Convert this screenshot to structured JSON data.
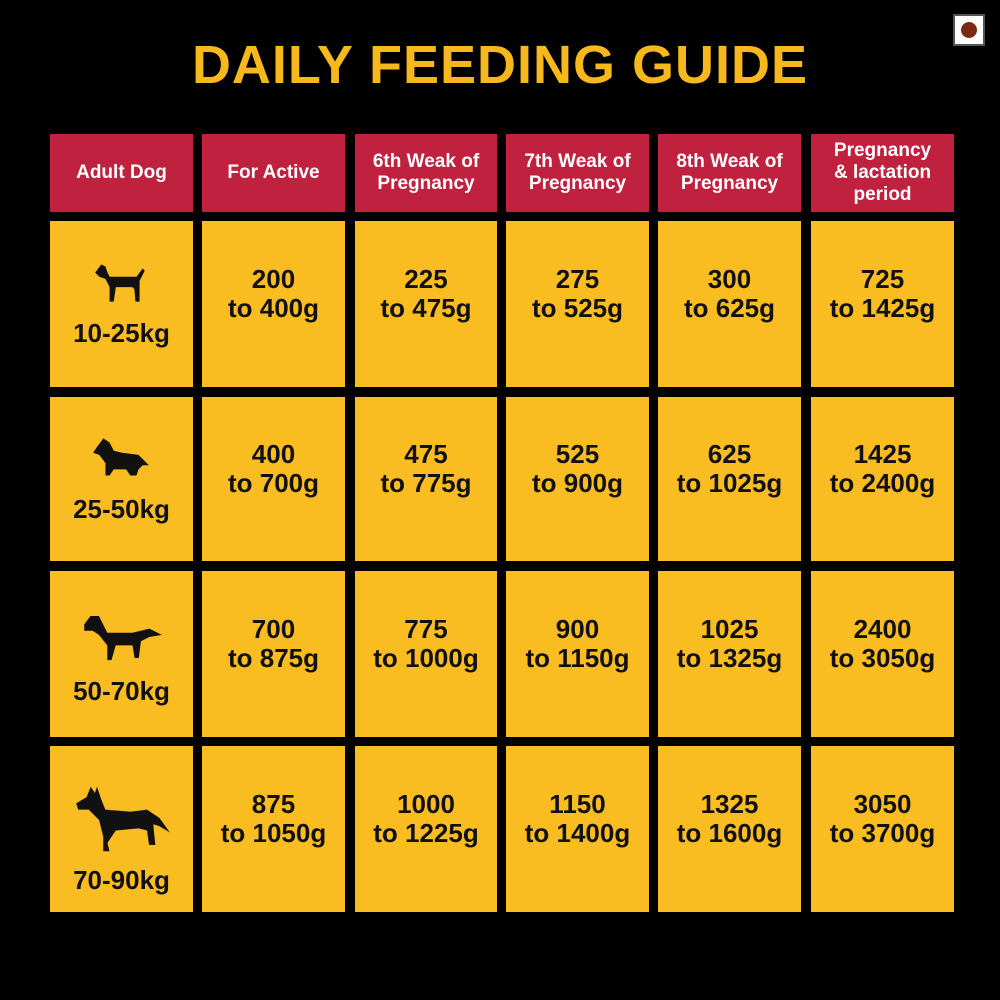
{
  "title": "DAILY FEEDING GUIDE",
  "table": {
    "headers": [
      [
        "Adult Dog"
      ],
      [
        "For Active"
      ],
      [
        "6th Weak of",
        "Pregnancy"
      ],
      [
        "7th Weak of",
        "Pregnancy"
      ],
      [
        "8th Weak of",
        "Pregnancy"
      ],
      [
        "Pregnancy",
        "& lactation",
        "period"
      ]
    ],
    "rows": [
      {
        "weight": "10-25kg",
        "cells": [
          [
            "200",
            "to 400g"
          ],
          [
            "225",
            "to 475g"
          ],
          [
            "275",
            "to 525g"
          ],
          [
            "300",
            "to 625g"
          ],
          [
            "725",
            "to 1425g"
          ]
        ]
      },
      {
        "weight": "25-50kg",
        "cells": [
          [
            "400",
            "to 700g"
          ],
          [
            "475",
            "to 775g"
          ],
          [
            "525",
            "to 900g"
          ],
          [
            "625",
            "to 1025g"
          ],
          [
            "1425",
            "to 2400g"
          ]
        ]
      },
      {
        "weight": "50-70kg",
        "cells": [
          [
            "700",
            "to 875g"
          ],
          [
            "775",
            "to 1000g"
          ],
          [
            "900",
            "to 1150g"
          ],
          [
            "1025",
            "to 1325g"
          ],
          [
            "2400",
            "to 3050g"
          ]
        ]
      },
      {
        "weight": "70-90kg",
        "cells": [
          [
            "875",
            "to 1050g"
          ],
          [
            "1000",
            "to 1225g"
          ],
          [
            "1150",
            "to 1400g"
          ],
          [
            "1325",
            "to 1600g"
          ],
          [
            "3050",
            "to 3700g"
          ]
        ]
      }
    ]
  }
}
